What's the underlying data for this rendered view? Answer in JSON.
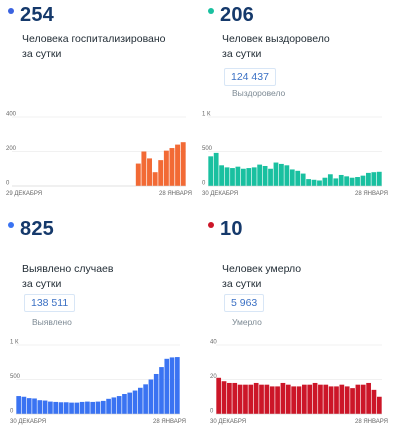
{
  "panels": [
    {
      "value": "254",
      "label_line1": "Человека госпитализировано",
      "label_line2": "за сутки",
      "badge": "",
      "sub": "",
      "color": "#f26a35",
      "dot_color": "#3b63e0",
      "y_ticks": [
        "400",
        "200",
        "0"
      ],
      "x_start": "29 ДЕКАБРЯ",
      "x_end": "28 ЯНВАРЯ"
    },
    {
      "value": "206",
      "label_line1": "Человек выздоровело",
      "label_line2": "за сутки",
      "badge": "124 437",
      "sub": "Выздоровело",
      "color": "#19c0a0",
      "dot_color": "#19c0a0",
      "y_ticks": [
        "1 К",
        "500",
        "0"
      ],
      "x_start": "30 ДЕКАБРЯ",
      "x_end": "28 ЯНВАРЯ"
    },
    {
      "value": "825",
      "label_line1": "Выявлено случаев",
      "label_line2": "за сутки",
      "badge": "138 511",
      "sub": "Выявлено",
      "color": "#3a73f2",
      "dot_color": "#3a73f2",
      "y_ticks": [
        "1 К",
        "500",
        "0"
      ],
      "x_start": "30 ДЕКАБРЯ",
      "x_end": "28 ЯНВАРЯ"
    },
    {
      "value": "10",
      "label_line1": "Человек умерло",
      "label_line2": "за сутки",
      "badge": "5 963",
      "sub": "Умерло",
      "color": "#cc1628",
      "dot_color": "#cc1628",
      "y_ticks": [
        "40",
        "20",
        "0"
      ],
      "x_start": "30 ДЕКАБРЯ",
      "x_end": "28 ЯНВАРЯ"
    }
  ],
  "chart_data": [
    {
      "type": "bar",
      "ylim": [
        0,
        400
      ],
      "values": [
        null,
        null,
        null,
        null,
        null,
        null,
        null,
        null,
        null,
        null,
        null,
        null,
        null,
        null,
        null,
        null,
        null,
        null,
        null,
        null,
        null,
        null,
        130,
        200,
        160,
        80,
        150,
        205,
        220,
        240,
        254
      ]
    },
    {
      "type": "bar",
      "ylim": [
        0,
        1000
      ],
      "values": [
        430,
        480,
        300,
        270,
        260,
        280,
        250,
        260,
        270,
        310,
        290,
        250,
        340,
        320,
        300,
        240,
        220,
        180,
        100,
        90,
        80,
        120,
        170,
        110,
        160,
        140,
        120,
        130,
        150,
        190,
        200,
        206
      ]
    },
    {
      "type": "bar",
      "ylim": [
        0,
        1000
      ],
      "values": [
        260,
        250,
        230,
        225,
        200,
        195,
        180,
        175,
        170,
        170,
        165,
        165,
        175,
        180,
        175,
        180,
        190,
        220,
        240,
        260,
        290,
        310,
        340,
        380,
        430,
        500,
        580,
        680,
        800,
        820,
        825
      ]
    },
    {
      "type": "bar",
      "ylim": [
        0,
        40
      ],
      "values": [
        21,
        19,
        18,
        18,
        17,
        17,
        17,
        18,
        17,
        17,
        16,
        16,
        18,
        17,
        16,
        16,
        17,
        17,
        18,
        17,
        17,
        16,
        16,
        17,
        16,
        15,
        17,
        17,
        18,
        14,
        10
      ]
    }
  ]
}
